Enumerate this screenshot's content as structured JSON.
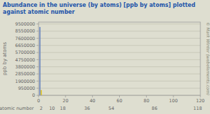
{
  "chart_data": {
    "type": "bar",
    "title": "Abundance in the universe (by atoms) [ppb by atoms] plotted against atomic number",
    "ylabel": "ppb by atoms",
    "xlabel": "atomic number",
    "annotations": [
      "© Mark Winter (webelements.com)"
    ],
    "x": [
      1,
      2
    ],
    "values": [
      9100000,
      710000
    ],
    "colors": [
      "#5577bb",
      "#ddbb00"
    ],
    "xlim": [
      0,
      120
    ],
    "xticks": [
      0,
      20,
      40,
      60,
      80,
      100,
      120
    ],
    "x2ticks": [
      2,
      10,
      18,
      36,
      54,
      86,
      118
    ],
    "ylim": [
      0,
      9750000
    ],
    "yticks": [
      0,
      950000,
      1900000,
      2850000,
      3800000,
      4750000,
      5700000,
      6650000,
      7600000,
      8550000,
      9500000
    ],
    "grid": true
  }
}
